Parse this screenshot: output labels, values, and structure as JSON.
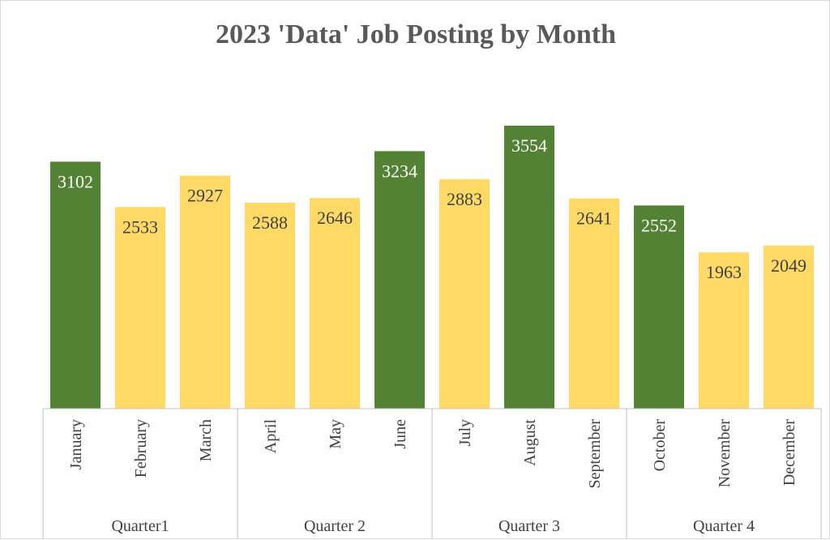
{
  "chart_data": {
    "type": "bar",
    "title": "2023 'Data' Job Posting by Month",
    "xlabel": "",
    "ylabel": "",
    "ylim": [
      0,
      4000
    ],
    "grid": false,
    "legend": "none",
    "categories": [
      "January",
      "February",
      "March",
      "April",
      "May",
      "June",
      "July",
      "August",
      "September",
      "October",
      "November",
      "December"
    ],
    "values": [
      3102,
      2533,
      2927,
      2588,
      2646,
      3234,
      2883,
      3554,
      2641,
      2552,
      1963,
      2049
    ],
    "highlight": [
      true,
      false,
      false,
      false,
      false,
      true,
      false,
      true,
      false,
      true,
      false,
      false
    ],
    "groups": [
      {
        "label": "Quarter1",
        "count": 3
      },
      {
        "label": "Quarter 2",
        "count": 3
      },
      {
        "label": "Quarter 3",
        "count": 3
      },
      {
        "label": "Quarter 4",
        "count": 3
      }
    ],
    "colors": {
      "highlight": "#548235",
      "normal": "#ffd966"
    }
  }
}
